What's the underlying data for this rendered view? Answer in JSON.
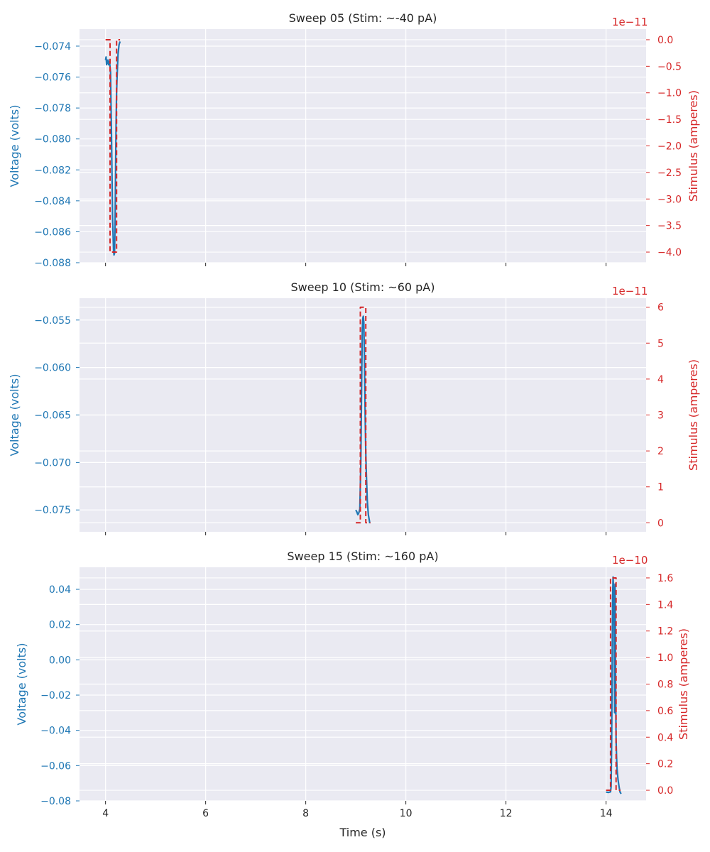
{
  "figure": {
    "xlabel": "Time (s)"
  },
  "colors": {
    "voltage": "#1f77b4",
    "stimulus": "#d62728",
    "plot_bg": "#eaeaf2",
    "grid": "#ffffff",
    "text": "#262626"
  },
  "chart_data": [
    {
      "type": "line",
      "title": "Sweep 05 (Stim: ~-40 pA)",
      "xlim": [
        3.48,
        14.8
      ],
      "xticks": [
        4,
        6,
        8,
        10,
        12,
        14
      ],
      "xtick_labels": [
        "4",
        "6",
        "8",
        "10",
        "12",
        "14"
      ],
      "show_xticklabels": false,
      "xlabel": "",
      "ylabel_left": "Voltage (volts)",
      "ylabel_right": "Stimulus (amperes)",
      "right_offset_text": "1e−11",
      "ylim_left": [
        -0.088,
        -0.0729
      ],
      "yticks_left": [
        -0.088,
        -0.086,
        -0.084,
        -0.082,
        -0.08,
        -0.078,
        -0.076,
        -0.074
      ],
      "ytick_labels_left": [
        "−0.088",
        "−0.086",
        "−0.084",
        "−0.082",
        "−0.080",
        "−0.078",
        "−0.076",
        "−0.074"
      ],
      "ylim_right": [
        -4.2,
        0.2
      ],
      "yticks_right": [
        -4.0,
        -3.5,
        -3.0,
        -2.5,
        -2.0,
        -1.5,
        -1.0,
        -0.5,
        0.0
      ],
      "ytick_labels_right": [
        "−4.0",
        "−3.5",
        "−3.0",
        "−2.5",
        "−2.0",
        "−1.5",
        "−1.0",
        "−0.5",
        "0.0"
      ],
      "grid": true,
      "series": [
        {
          "axis": "left",
          "style": "solid",
          "x": [
            4.0,
            4.01,
            4.02,
            4.03,
            4.04,
            4.05,
            4.06,
            4.08,
            4.1,
            4.12,
            4.14,
            4.16,
            4.17,
            4.18,
            4.19,
            4.2,
            4.21,
            4.22,
            4.23,
            4.24,
            4.25,
            4.27,
            4.29
          ],
          "y": [
            -0.0749,
            -0.0747,
            -0.0752,
            -0.0749,
            -0.0751,
            -0.0749,
            -0.0752,
            -0.075,
            -0.0757,
            -0.08,
            -0.085,
            -0.0872,
            -0.0875,
            -0.0874,
            -0.0855,
            -0.082,
            -0.079,
            -0.077,
            -0.076,
            -0.0752,
            -0.0745,
            -0.0739,
            -0.0737
          ]
        },
        {
          "axis": "right",
          "style": "dashed",
          "x": [
            4.0,
            4.09,
            4.09,
            4.22,
            4.22,
            4.29
          ],
          "y": [
            0.0,
            0.0,
            -4.0,
            -4.0,
            0.0,
            0.0
          ]
        }
      ]
    },
    {
      "type": "line",
      "title": "Sweep 10 (Stim: ~60 pA)",
      "xlim": [
        3.48,
        14.8
      ],
      "xticks": [
        4,
        6,
        8,
        10,
        12,
        14
      ],
      "xtick_labels": [
        "4",
        "6",
        "8",
        "10",
        "12",
        "14"
      ],
      "show_xticklabels": false,
      "xlabel": "",
      "ylabel_left": "Voltage (volts)",
      "ylabel_right": "Stimulus (amperes)",
      "right_offset_text": "1e−11",
      "ylim_left": [
        -0.0773,
        -0.0527
      ],
      "yticks_left": [
        -0.075,
        -0.07,
        -0.065,
        -0.06,
        -0.055
      ],
      "ytick_labels_left": [
        "−0.075",
        "−0.070",
        "−0.065",
        "−0.060",
        "−0.055"
      ],
      "ylim_right": [
        -0.25,
        6.25
      ],
      "yticks_right": [
        0,
        1,
        2,
        3,
        4,
        5,
        6
      ],
      "ytick_labels_right": [
        "0",
        "1",
        "2",
        "3",
        "4",
        "5",
        "6"
      ],
      "grid": true,
      "series": [
        {
          "axis": "left",
          "style": "solid",
          "x": [
            9.0,
            9.02,
            9.04,
            9.06,
            9.08,
            9.1,
            9.12,
            9.13,
            9.14,
            9.15,
            9.16,
            9.17,
            9.18,
            9.19,
            9.2,
            9.21,
            9.22,
            9.23,
            9.25,
            9.28
          ],
          "y": [
            -0.075,
            -0.0752,
            -0.0755,
            -0.0753,
            -0.0749,
            -0.07,
            -0.06,
            -0.056,
            -0.0548,
            -0.0546,
            -0.0552,
            -0.058,
            -0.062,
            -0.066,
            -0.069,
            -0.071,
            -0.0725,
            -0.074,
            -0.0755,
            -0.0764
          ]
        },
        {
          "axis": "right",
          "style": "dashed",
          "x": [
            9.0,
            9.09,
            9.09,
            9.2,
            9.2,
            9.29
          ],
          "y": [
            0.0,
            0.0,
            6.0,
            6.0,
            0.0,
            0.0
          ]
        }
      ]
    },
    {
      "type": "line",
      "title": "Sweep 15 (Stim: ~160 pA)",
      "xlim": [
        3.48,
        14.8
      ],
      "xticks": [
        4,
        6,
        8,
        10,
        12,
        14
      ],
      "xtick_labels": [
        "4",
        "6",
        "8",
        "10",
        "12",
        "14"
      ],
      "show_xticklabels": true,
      "xlabel": "Time (s)",
      "ylabel_left": "Voltage (volts)",
      "ylabel_right": "Stimulus (amperes)",
      "right_offset_text": "1e−10",
      "ylim_left": [
        -0.08,
        0.0525
      ],
      "yticks_left": [
        -0.08,
        -0.06,
        -0.04,
        -0.02,
        0.0,
        0.02,
        0.04
      ],
      "ytick_labels_left": [
        "−0.08",
        "−0.06",
        "−0.04",
        "−0.02",
        "0.00",
        "0.02",
        "0.04"
      ],
      "ylim_right": [
        -0.08,
        1.68
      ],
      "yticks_right": [
        0.0,
        0.2,
        0.4,
        0.6,
        0.8,
        1.0,
        1.2,
        1.4,
        1.6
      ],
      "ytick_labels_right": [
        "0.0",
        "0.2",
        "0.4",
        "0.6",
        "0.8",
        "1.0",
        "1.2",
        "1.4",
        "1.6"
      ],
      "grid": true,
      "series": [
        {
          "axis": "left",
          "style": "solid",
          "x": [
            14.0,
            14.05,
            14.09,
            14.1,
            14.11,
            14.12,
            14.13,
            14.14,
            14.15,
            14.16,
            14.17,
            14.18,
            14.19,
            14.2,
            14.21,
            14.22,
            14.24,
            14.26,
            14.28,
            14.3
          ],
          "y": [
            -0.075,
            -0.0752,
            -0.0749,
            -0.072,
            -0.05,
            -0.01,
            0.035,
            0.047,
            0.04,
            0.02,
            -0.03,
            0.043,
            -0.01,
            -0.045,
            -0.055,
            -0.062,
            -0.068,
            -0.072,
            -0.075,
            -0.076
          ]
        },
        {
          "axis": "right",
          "style": "dashed",
          "x": [
            14.0,
            14.09,
            14.09,
            14.2,
            14.2,
            14.29
          ],
          "y": [
            0.0,
            0.0,
            1.6,
            1.6,
            0.0,
            0.0
          ]
        }
      ]
    }
  ]
}
